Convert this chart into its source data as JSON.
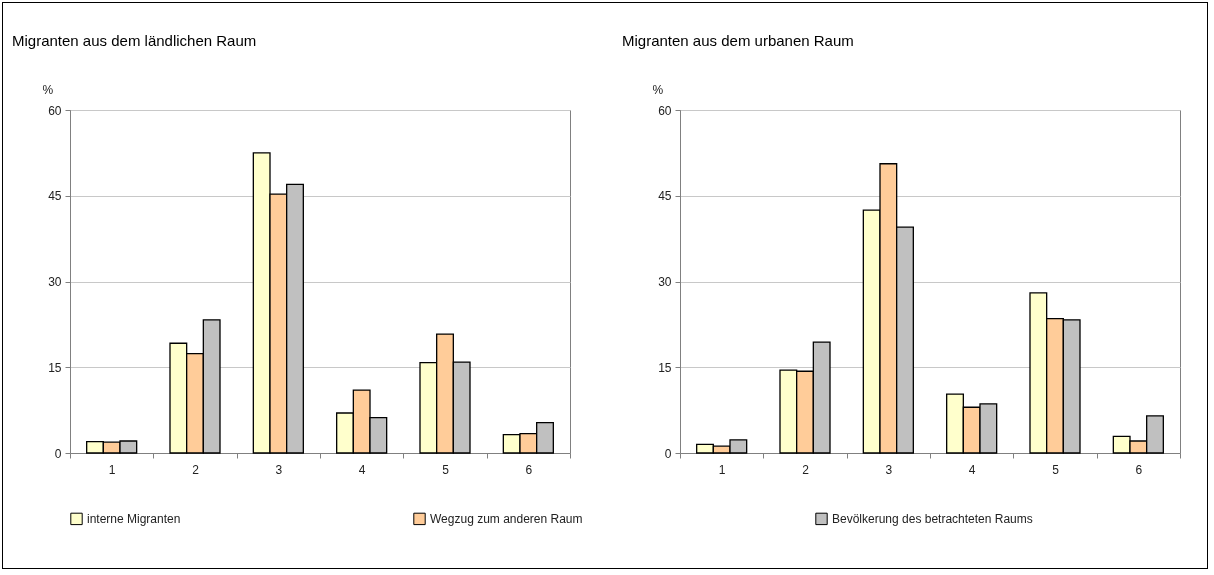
{
  "chart_data": [
    {
      "type": "bar",
      "title": "Migranten aus dem ländlichen Raum",
      "ylabel": "%",
      "categories": [
        "1",
        "2",
        "3",
        "4",
        "5",
        "6"
      ],
      "ylim": [
        0,
        60
      ],
      "yticks": [
        0,
        15,
        30,
        45,
        60
      ],
      "grid": "y",
      "legend": "bottom",
      "series": [
        {
          "name": "interne Migranten",
          "color": "#ffffcc",
          "values": [
            2,
            19.2,
            52.5,
            7,
            15.8,
            3.2
          ]
        },
        {
          "name": "Wegzug zum anderen Raum",
          "color": "#ffcc99",
          "values": [
            1.9,
            17.4,
            45.3,
            11,
            20.8,
            3.4
          ]
        },
        {
          "name": "Bevölkerung des betrachteten Raums",
          "color": "#c0c0c0",
          "values": [
            2.1,
            23.3,
            47,
            6.2,
            15.9,
            5.3
          ]
        }
      ]
    },
    {
      "type": "bar",
      "title": "Migranten aus dem urbanen Raum",
      "ylabel": "%",
      "categories": [
        "1",
        "2",
        "3",
        "4",
        "5",
        "6"
      ],
      "ylim": [
        0,
        60
      ],
      "yticks": [
        0,
        15,
        30,
        45,
        60
      ],
      "grid": "y",
      "legend": "bottom",
      "series": [
        {
          "name": "interne Migranten",
          "color": "#ffffcc",
          "values": [
            1.5,
            14.5,
            42.5,
            10.3,
            28,
            2.9
          ]
        },
        {
          "name": "Wegzug zum anderen Raum",
          "color": "#ffcc99",
          "values": [
            1.2,
            14.3,
            50.6,
            8,
            23.5,
            2.1
          ]
        },
        {
          "name": "Bevölkerung des betrachteten Raums",
          "color": "#c0c0c0",
          "values": [
            2.3,
            19.4,
            39.5,
            8.6,
            23.3,
            6.5
          ]
        }
      ]
    }
  ]
}
